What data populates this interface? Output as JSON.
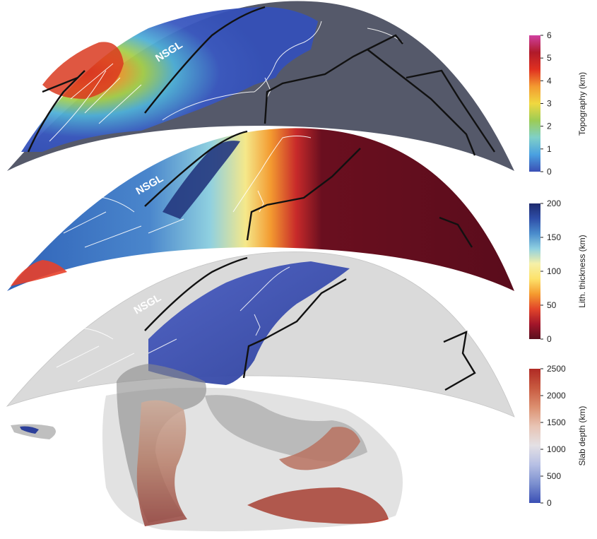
{
  "panels": {
    "topography": {
      "label": "NSGL"
    },
    "lithosphere": {
      "label": "NSGL"
    },
    "slab": {
      "label": "NSGL"
    }
  },
  "colorbars": {
    "topography": {
      "title": "Topography (km)",
      "ticks": [
        "0",
        "1",
        "2",
        "3",
        "4",
        "5",
        "6"
      ],
      "colors": [
        "#3a4fb5",
        "#4aa0e0",
        "#7fd0c8",
        "#9ccc55",
        "#f0d840",
        "#f39a30",
        "#e03020",
        "#b01a2a",
        "#d040a0"
      ]
    },
    "lithosphere": {
      "title": "Lith. thickness (km)",
      "ticks": [
        "0",
        "50",
        "100",
        "150",
        "200"
      ],
      "colors": [
        "#5a0f1e",
        "#a3162a",
        "#e2452a",
        "#f59b2f",
        "#fde26a",
        "#f5f0a8",
        "#8fd0e0",
        "#4a8ccc",
        "#2e4ea8",
        "#1e2a6e"
      ]
    },
    "slab": {
      "title": "Slab depth (km)",
      "ticks": [
        "0",
        "500",
        "1000",
        "1500",
        "2000",
        "2500"
      ],
      "colors": [
        "#3a4fb5",
        "#7b8fcf",
        "#b7c0e4",
        "#e4e0e4",
        "#e8c4b4",
        "#dc9070",
        "#c85a40",
        "#b02a24"
      ]
    }
  }
}
